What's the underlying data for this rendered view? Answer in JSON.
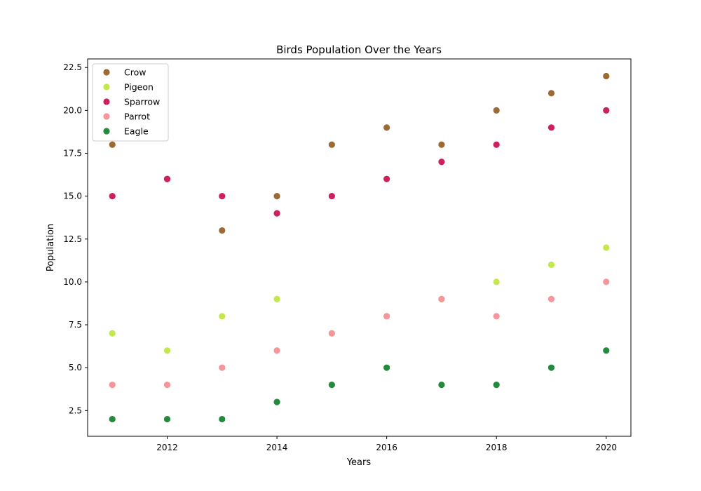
{
  "chart_data": {
    "type": "scatter",
    "title": "Birds Population Over the Years",
    "xlabel": "Years",
    "ylabel": "Population",
    "x": [
      2011,
      2012,
      2013,
      2014,
      2015,
      2016,
      2017,
      2018,
      2019,
      2020
    ],
    "xlim": [
      2010.55,
      2020.45
    ],
    "ylim": [
      1.0,
      23.0
    ],
    "xticks": [
      2012,
      2014,
      2016,
      2018,
      2020
    ],
    "yticks": [
      2.5,
      5.0,
      7.5,
      10.0,
      12.5,
      15.0,
      17.5,
      20.0,
      22.5
    ],
    "ytick_labels": [
      "2.5",
      "5.0",
      "7.5",
      "10.0",
      "12.5",
      "15.0",
      "17.5",
      "20.0",
      "22.5"
    ],
    "grid": false,
    "legend_position": "top-left",
    "series": [
      {
        "name": "Crow",
        "color": "#9c6b35",
        "values": [
          18,
          16,
          13,
          15,
          18,
          19,
          18,
          20,
          21,
          22
        ]
      },
      {
        "name": "Pigeon",
        "color": "#c2e84c",
        "values": [
          7,
          6,
          8,
          9,
          7,
          8,
          9,
          10,
          11,
          12
        ]
      },
      {
        "name": "Sparrow",
        "color": "#cc2060",
        "values": [
          15,
          16,
          15,
          14,
          15,
          16,
          17,
          18,
          19,
          20
        ]
      },
      {
        "name": "Parrot",
        "color": "#f4969a",
        "values": [
          4,
          4,
          5,
          6,
          7,
          8,
          9,
          8,
          9,
          10
        ]
      },
      {
        "name": "Eagle",
        "color": "#238a3e",
        "values": [
          2,
          2,
          2,
          3,
          4,
          5,
          4,
          4,
          5,
          6
        ]
      }
    ]
  }
}
